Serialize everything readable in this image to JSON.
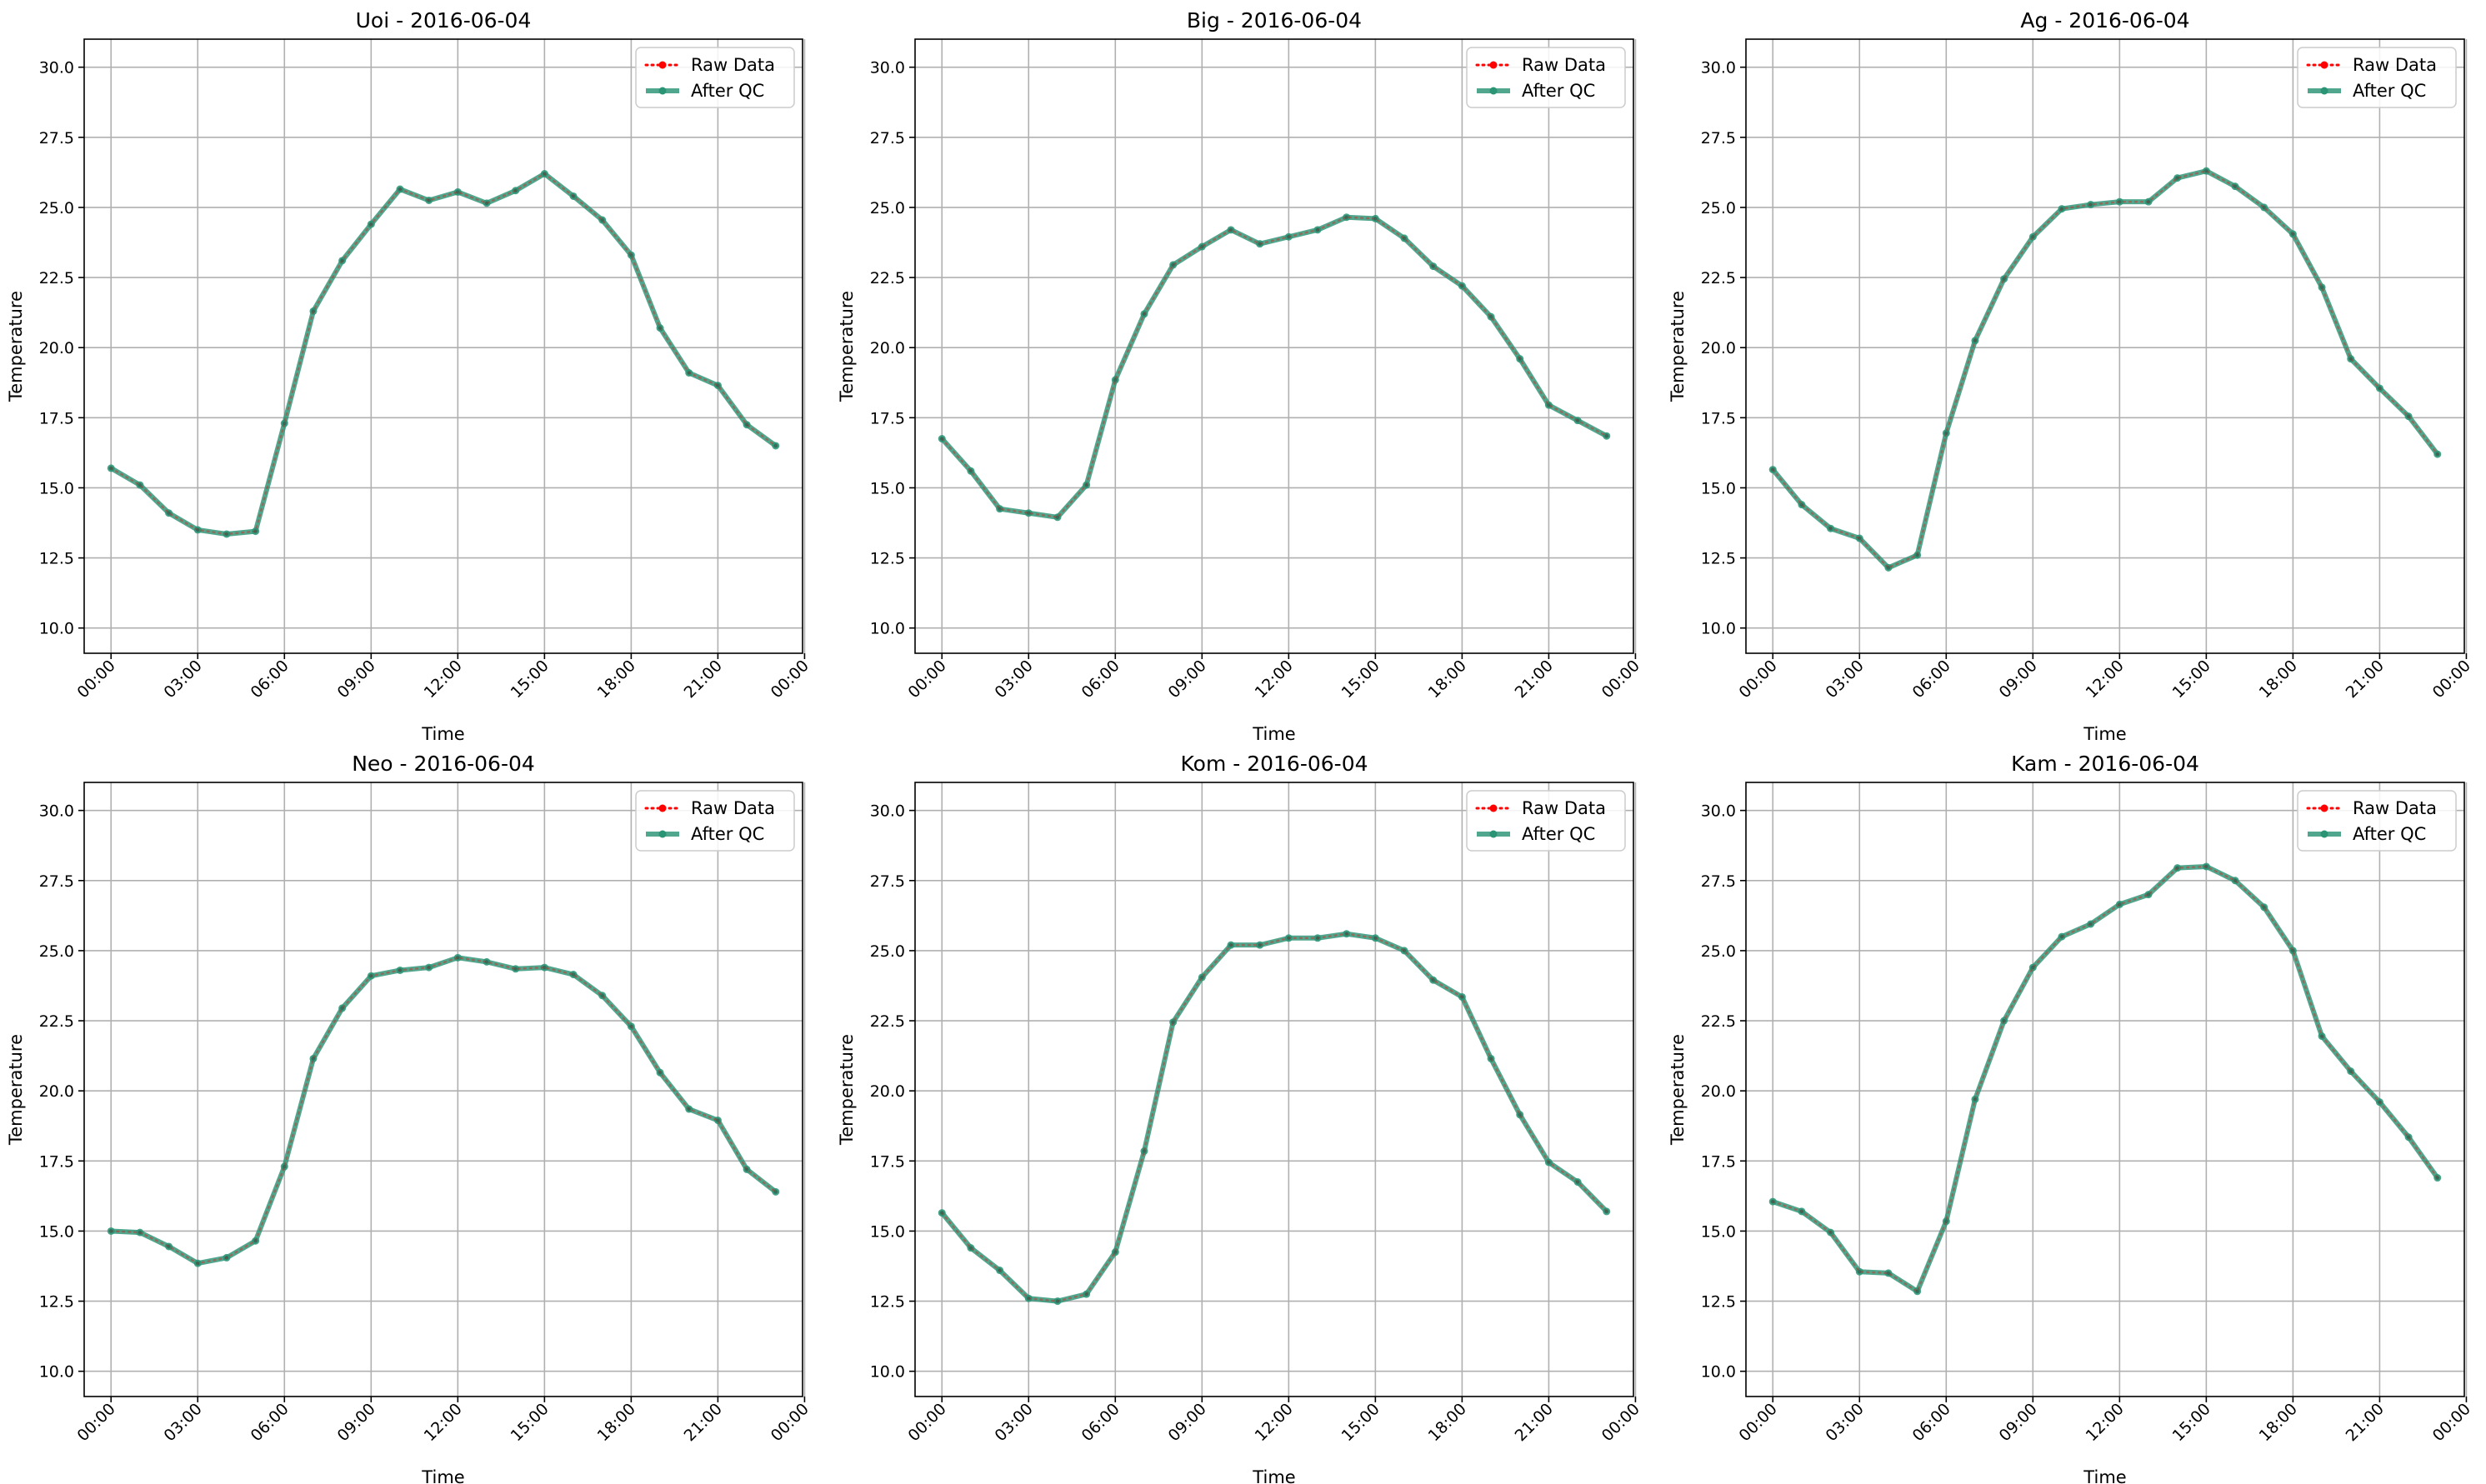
{
  "chart_data": [
    {
      "type": "line",
      "title": "Uoi - 2016-06-04",
      "xlabel": "Time",
      "ylabel": "Temperature",
      "ylim": [
        9.1,
        31.0
      ],
      "xlim": [
        -0.93,
        23.93
      ],
      "yticks": [
        "10.0",
        "12.5",
        "15.0",
        "17.5",
        "20.0",
        "22.5",
        "25.0",
        "27.5",
        "30.0"
      ],
      "xticks": [
        "00:00",
        "03:00",
        "06:00",
        "09:00",
        "12:00",
        "15:00",
        "18:00",
        "21:00",
        "00:00"
      ],
      "grid": true,
      "legend_position": "top-right",
      "x": [
        0,
        1,
        2,
        3,
        4,
        5,
        6,
        7,
        8,
        9,
        10,
        11,
        12,
        13,
        14,
        15,
        16,
        17,
        18,
        19,
        20,
        21,
        22,
        23
      ],
      "series": [
        {
          "name": "Raw Data",
          "color": "#ff0000",
          "style": "dotted",
          "values": [
            15.7,
            15.1,
            14.1,
            13.5,
            13.35,
            13.45,
            17.3,
            21.3,
            23.1,
            24.4,
            25.65,
            25.25,
            25.55,
            25.15,
            25.6,
            26.2,
            25.4,
            24.55,
            23.3,
            20.7,
            19.1,
            18.65,
            17.25,
            16.5
          ]
        },
        {
          "name": "After QC",
          "color": "#2a9475",
          "style": "solid",
          "values": [
            15.7,
            15.1,
            14.1,
            13.5,
            13.35,
            13.45,
            17.3,
            21.3,
            23.1,
            24.4,
            25.65,
            25.25,
            25.55,
            25.15,
            25.6,
            26.2,
            25.4,
            24.55,
            23.3,
            20.7,
            19.1,
            18.65,
            17.25,
            16.5
          ]
        }
      ]
    },
    {
      "type": "line",
      "title": "Big - 2016-06-04",
      "xlabel": "Time",
      "ylabel": "Temperature",
      "ylim": [
        9.1,
        31.0
      ],
      "xlim": [
        -0.93,
        23.93
      ],
      "yticks": [
        "10.0",
        "12.5",
        "15.0",
        "17.5",
        "20.0",
        "22.5",
        "25.0",
        "27.5",
        "30.0"
      ],
      "xticks": [
        "00:00",
        "03:00",
        "06:00",
        "09:00",
        "12:00",
        "15:00",
        "18:00",
        "21:00",
        "00:00"
      ],
      "grid": true,
      "legend_position": "top-right",
      "x": [
        0,
        1,
        2,
        3,
        4,
        5,
        6,
        7,
        8,
        9,
        10,
        11,
        12,
        13,
        14,
        15,
        16,
        17,
        18,
        19,
        20,
        21,
        22,
        23
      ],
      "series": [
        {
          "name": "Raw Data",
          "color": "#ff0000",
          "style": "dotted",
          "values": [
            16.75,
            15.6,
            14.25,
            14.1,
            13.95,
            15.1,
            18.85,
            21.2,
            22.95,
            23.6,
            24.2,
            23.7,
            23.95,
            24.2,
            24.65,
            24.6,
            23.9,
            22.9,
            22.2,
            21.1,
            19.6,
            17.95,
            17.4,
            16.85
          ]
        },
        {
          "name": "After QC",
          "color": "#2a9475",
          "style": "solid",
          "values": [
            16.75,
            15.6,
            14.25,
            14.1,
            13.95,
            15.1,
            18.85,
            21.2,
            22.95,
            23.6,
            24.2,
            23.7,
            23.95,
            24.2,
            24.65,
            24.6,
            23.9,
            22.9,
            22.2,
            21.1,
            19.6,
            17.95,
            17.4,
            16.85
          ]
        }
      ]
    },
    {
      "type": "line",
      "title": "Ag - 2016-06-04",
      "xlabel": "Time",
      "ylabel": "Temperature",
      "ylim": [
        9.1,
        31.0
      ],
      "xlim": [
        -0.93,
        23.93
      ],
      "yticks": [
        "10.0",
        "12.5",
        "15.0",
        "17.5",
        "20.0",
        "22.5",
        "25.0",
        "27.5",
        "30.0"
      ],
      "xticks": [
        "00:00",
        "03:00",
        "06:00",
        "09:00",
        "12:00",
        "15:00",
        "18:00",
        "21:00",
        "00:00"
      ],
      "grid": true,
      "legend_position": "top-right",
      "x": [
        0,
        1,
        2,
        3,
        4,
        5,
        6,
        7,
        8,
        9,
        10,
        11,
        12,
        13,
        14,
        15,
        16,
        17,
        18,
        19,
        20,
        21,
        22,
        23
      ],
      "series": [
        {
          "name": "Raw Data",
          "color": "#ff0000",
          "style": "dotted",
          "values": [
            15.65,
            14.4,
            13.55,
            13.2,
            12.15,
            12.6,
            16.95,
            20.25,
            22.45,
            23.95,
            24.95,
            25.1,
            25.2,
            25.2,
            26.05,
            26.3,
            25.75,
            25.0,
            24.05,
            22.15,
            19.6,
            18.55,
            17.55,
            16.2
          ]
        },
        {
          "name": "After QC",
          "color": "#2a9475",
          "style": "solid",
          "values": [
            15.65,
            14.4,
            13.55,
            13.2,
            12.15,
            12.6,
            16.95,
            20.25,
            22.45,
            23.95,
            24.95,
            25.1,
            25.2,
            25.2,
            26.05,
            26.3,
            25.75,
            25.0,
            24.05,
            22.15,
            19.6,
            18.55,
            17.55,
            16.2
          ]
        }
      ]
    },
    {
      "type": "line",
      "title": "Neo - 2016-06-04",
      "xlabel": "Time",
      "ylabel": "Temperature",
      "ylim": [
        9.1,
        31.0
      ],
      "xlim": [
        -0.93,
        23.93
      ],
      "yticks": [
        "10.0",
        "12.5",
        "15.0",
        "17.5",
        "20.0",
        "22.5",
        "25.0",
        "27.5",
        "30.0"
      ],
      "xticks": [
        "00:00",
        "03:00",
        "06:00",
        "09:00",
        "12:00",
        "15:00",
        "18:00",
        "21:00",
        "00:00"
      ],
      "grid": true,
      "legend_position": "top-right",
      "x": [
        0,
        1,
        2,
        3,
        4,
        5,
        6,
        7,
        8,
        9,
        10,
        11,
        12,
        13,
        14,
        15,
        16,
        17,
        18,
        19,
        20,
        21,
        22,
        23
      ],
      "series": [
        {
          "name": "Raw Data",
          "color": "#ff0000",
          "style": "dotted",
          "values": [
            15.0,
            14.95,
            14.45,
            13.85,
            14.05,
            14.65,
            17.3,
            21.15,
            22.95,
            24.1,
            24.3,
            24.4,
            24.75,
            24.6,
            24.35,
            24.4,
            24.15,
            23.4,
            22.3,
            20.65,
            19.35,
            18.95,
            17.2,
            16.4
          ]
        },
        {
          "name": "After QC",
          "color": "#2a9475",
          "style": "solid",
          "values": [
            15.0,
            14.95,
            14.45,
            13.85,
            14.05,
            14.65,
            17.3,
            21.15,
            22.95,
            24.1,
            24.3,
            24.4,
            24.75,
            24.6,
            24.35,
            24.4,
            24.15,
            23.4,
            22.3,
            20.65,
            19.35,
            18.95,
            17.2,
            16.4
          ]
        }
      ]
    },
    {
      "type": "line",
      "title": "Kom - 2016-06-04",
      "xlabel": "Time",
      "ylabel": "Temperature",
      "ylim": [
        9.1,
        31.0
      ],
      "xlim": [
        -0.93,
        23.93
      ],
      "yticks": [
        "10.0",
        "12.5",
        "15.0",
        "17.5",
        "20.0",
        "22.5",
        "25.0",
        "27.5",
        "30.0"
      ],
      "xticks": [
        "00:00",
        "03:00",
        "06:00",
        "09:00",
        "12:00",
        "15:00",
        "18:00",
        "21:00",
        "00:00"
      ],
      "grid": true,
      "legend_position": "top-right",
      "x": [
        0,
        1,
        2,
        3,
        4,
        5,
        6,
        7,
        8,
        9,
        10,
        11,
        12,
        13,
        14,
        15,
        16,
        17,
        18,
        19,
        20,
        21,
        22,
        23
      ],
      "series": [
        {
          "name": "Raw Data",
          "color": "#ff0000",
          "style": "dotted",
          "values": [
            15.65,
            14.4,
            13.6,
            12.6,
            12.5,
            12.75,
            14.25,
            17.85,
            22.45,
            24.05,
            25.2,
            25.2,
            25.45,
            25.45,
            25.6,
            25.45,
            25.0,
            23.95,
            23.35,
            21.15,
            19.15,
            17.45,
            16.75,
            15.7
          ]
        },
        {
          "name": "After QC",
          "color": "#2a9475",
          "style": "solid",
          "values": [
            15.65,
            14.4,
            13.6,
            12.6,
            12.5,
            12.75,
            14.25,
            17.85,
            22.45,
            24.05,
            25.2,
            25.2,
            25.45,
            25.45,
            25.6,
            25.45,
            25.0,
            23.95,
            23.35,
            21.15,
            19.15,
            17.45,
            16.75,
            15.7
          ]
        }
      ]
    },
    {
      "type": "line",
      "title": "Kam - 2016-06-04",
      "xlabel": "Time",
      "ylabel": "Temperature",
      "ylim": [
        9.1,
        31.0
      ],
      "xlim": [
        -0.93,
        23.93
      ],
      "yticks": [
        "10.0",
        "12.5",
        "15.0",
        "17.5",
        "20.0",
        "22.5",
        "25.0",
        "27.5",
        "30.0"
      ],
      "xticks": [
        "00:00",
        "03:00",
        "06:00",
        "09:00",
        "12:00",
        "15:00",
        "18:00",
        "21:00",
        "00:00"
      ],
      "grid": true,
      "legend_position": "top-right",
      "x": [
        0,
        1,
        2,
        3,
        4,
        5,
        6,
        7,
        8,
        9,
        10,
        11,
        12,
        13,
        14,
        15,
        16,
        17,
        18,
        19,
        20,
        21,
        22,
        23
      ],
      "series": [
        {
          "name": "Raw Data",
          "color": "#ff0000",
          "style": "dotted",
          "values": [
            16.05,
            15.7,
            14.95,
            13.55,
            13.5,
            12.85,
            15.35,
            19.7,
            22.5,
            24.4,
            25.5,
            25.95,
            26.65,
            27.0,
            27.95,
            28.0,
            27.5,
            26.55,
            25.0,
            21.95,
            20.7,
            19.6,
            18.35,
            16.9
          ]
        },
        {
          "name": "After QC",
          "color": "#2a9475",
          "style": "solid",
          "values": [
            16.05,
            15.7,
            14.95,
            13.55,
            13.5,
            12.85,
            15.35,
            19.7,
            22.5,
            24.4,
            25.5,
            25.95,
            26.65,
            27.0,
            27.95,
            28.0,
            27.5,
            26.55,
            25.0,
            21.95,
            20.7,
            19.6,
            18.35,
            16.9
          ]
        }
      ]
    }
  ]
}
